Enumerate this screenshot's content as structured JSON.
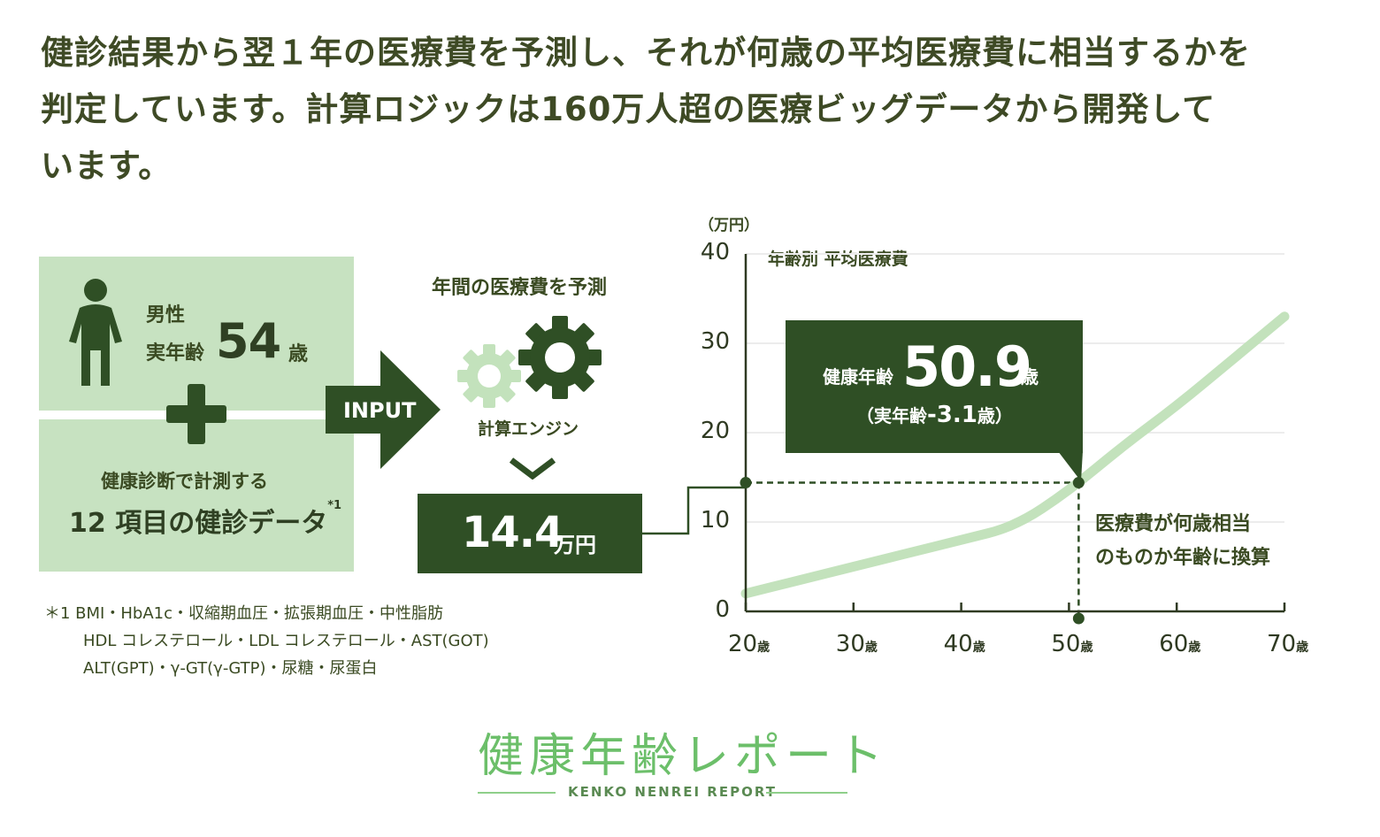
{
  "intro": {
    "line1": "健診結果から翌１年の医療費を予測し、それが何歳の平均医療費に相当するかを",
    "line2": "判定しています。計算ロジックは160万人超の医療ビッグデータから開発して",
    "line3": "います。"
  },
  "input_panel": {
    "gender": "男性",
    "age_label": "実年齢",
    "age_value": "54",
    "age_unit": "歳",
    "checkup_line1": "健康診断で計測する",
    "checkup_line2": "12 項目の健診データ",
    "footnote_mark": "*1"
  },
  "arrow": {
    "label": "INPUT"
  },
  "engine": {
    "title": "年間の医療費を予測",
    "label": "計算エンジン",
    "cost_value": "14.4",
    "cost_unit": "万円"
  },
  "footnote": {
    "line1": "＊1 BMI・HbA1c・収縮期血圧・拡張期血圧・中性脂肪",
    "line2": "HDL コレステロール・LDL コレステロール・AST(GOT)",
    "line3": "ALT(GPT)・γ-GT(γ-GTP)・尿糖・尿蛋白"
  },
  "result": {
    "label": "健康年齢",
    "value": "50.9",
    "unit": "歳",
    "sub_open": "（実年齢",
    "sub_value": "-3.1",
    "sub_close": "歳）",
    "annotation_line1": "医療費が何歳相当",
    "annotation_line2": "のものか年齢に換算"
  },
  "chart_data": {
    "type": "line",
    "title": "",
    "ylabel": "（万円）",
    "xlabel": "",
    "ylim": [
      0,
      40
    ],
    "xlim": [
      20,
      70
    ],
    "yticks": [
      "0",
      "10",
      "20",
      "30",
      "40"
    ],
    "xticks": [
      "20",
      "30",
      "40",
      "50",
      "60",
      "70"
    ],
    "xtick_unit": "歳",
    "grid": true,
    "series": [
      {
        "name": "年齢別 平均医療費",
        "x": [
          20,
          25,
          30,
          35,
          40,
          45,
          50,
          55,
          60,
          65,
          70
        ],
        "y": [
          2,
          3.5,
          5,
          6.5,
          8,
          9.5,
          13.5,
          18.5,
          23,
          28,
          33
        ]
      }
    ],
    "highlight": {
      "x": 50.9,
      "y": 14.4
    },
    "colors": {
      "line": "#c3e2bc",
      "marker": "#2f4f25",
      "grid": "#ececec"
    }
  },
  "logo": {
    "jp": "健康年齢レポート",
    "en": "KENKO NENREI REPORT"
  },
  "colors": {
    "panel": "#c7e2c1",
    "dark_green": "#2f4f25",
    "light_gear": "#c3e2bc",
    "logo": "#6cbf6a"
  }
}
